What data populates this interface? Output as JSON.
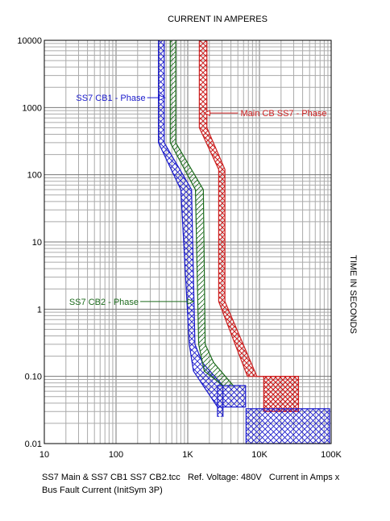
{
  "chart_data": {
    "type": "line",
    "title": "CURRENT IN AMPERES",
    "xlabel": "CURRENT IN AMPERES",
    "ylabel": "TIME IN SECONDS",
    "x_scale": "log",
    "y_scale": "log",
    "xlim": [
      10,
      100000
    ],
    "ylim": [
      0.01,
      10000
    ],
    "grid": true,
    "x_ticks": [
      {
        "value": 10,
        "label": "10"
      },
      {
        "value": 100,
        "label": "100"
      },
      {
        "value": 1000,
        "label": "1K"
      },
      {
        "value": 10000,
        "label": "10K"
      },
      {
        "value": 100000,
        "label": "100K"
      }
    ],
    "y_ticks": [
      {
        "value": 0.01,
        "label": "0.01"
      },
      {
        "value": 0.1,
        "label": "0.10"
      },
      {
        "value": 1,
        "label": "1"
      },
      {
        "value": 10,
        "label": "10"
      },
      {
        "value": 100,
        "label": "100"
      },
      {
        "value": 1000,
        "label": "1000"
      },
      {
        "value": 10000,
        "label": "10000"
      }
    ],
    "series": [
      {
        "name": "SS7 CB1 - Phase",
        "color": "#1a1acc",
        "pattern": "crosshatch",
        "min_curve": [
          [
            390,
            10000
          ],
          [
            390,
            300
          ],
          [
            800,
            60
          ],
          [
            1050,
            0.3
          ],
          [
            1200,
            0.12
          ],
          [
            2600,
            0.035
          ],
          [
            2600,
            0.025
          ]
        ],
        "max_curve": [
          [
            470,
            10000
          ],
          [
            470,
            300
          ],
          [
            1130,
            60
          ],
          [
            1260,
            0.3
          ],
          [
            1600,
            0.16
          ],
          [
            3100,
            0.073
          ],
          [
            3100,
            0.025
          ]
        ],
        "inst_band": {
          "current": [
            2600,
            6400
          ],
          "time": [
            0.035,
            0.073
          ]
        }
      },
      {
        "name": "SS7 CB2 - Phase",
        "color": "#1d6b1d",
        "pattern": "diagonal",
        "min_curve": [
          [
            570,
            10000
          ],
          [
            570,
            300
          ],
          [
            1280,
            60
          ],
          [
            1420,
            0.3
          ],
          [
            1700,
            0.12
          ],
          [
            3100,
            0.073
          ]
        ],
        "max_curve": [
          [
            680,
            10000
          ],
          [
            680,
            300
          ],
          [
            1650,
            60
          ],
          [
            1750,
            0.3
          ],
          [
            2300,
            0.16
          ],
          [
            4300,
            0.073
          ]
        ]
      },
      {
        "name": "Main CB SS7 - Phase",
        "color": "#cc2020",
        "pattern": "crosshatch",
        "min_curve": [
          [
            1450,
            10000
          ],
          [
            1450,
            500
          ],
          [
            2700,
            120
          ],
          [
            2700,
            1.3
          ],
          [
            6800,
            0.1
          ],
          [
            11500,
            0.1
          ],
          [
            11500,
            0.03
          ]
        ],
        "max_curve": [
          [
            1850,
            10000
          ],
          [
            1850,
            500
          ],
          [
            3300,
            120
          ],
          [
            3300,
            1.3
          ],
          [
            9200,
            0.1
          ],
          [
            35000,
            0.1
          ],
          [
            35000,
            0.03
          ]
        ],
        "inst_band": {
          "current": [
            11500,
            35000
          ],
          "time": [
            0.03,
            0.1
          ]
        }
      },
      {
        "name": "Bus Fault",
        "color": "#1a1acc",
        "pattern": "crosshatch",
        "box": {
          "current": [
            6500,
            95000
          ],
          "time": [
            0.01,
            0.033
          ]
        }
      }
    ],
    "annotations": [
      {
        "text": "SS7 CB1 - Phase",
        "color": "#1a1acc",
        "at": [
          480,
          1400
        ]
      },
      {
        "text": "SS7 CB2 - Phase",
        "color": "#1d6b1d",
        "at": [
          1200,
          1.3
        ]
      },
      {
        "text": "Main CB SS7 - Phase",
        "color": "#cc2020",
        "at": [
          1700,
          830
        ]
      }
    ]
  },
  "footer": {
    "line1": "SS7 Main & SS7 CB1 SS7 CB2.tcc   Ref. Voltage: 480V   Current in Amps x",
    "line2": "Bus Fault Current (InitSym 3P)"
  }
}
